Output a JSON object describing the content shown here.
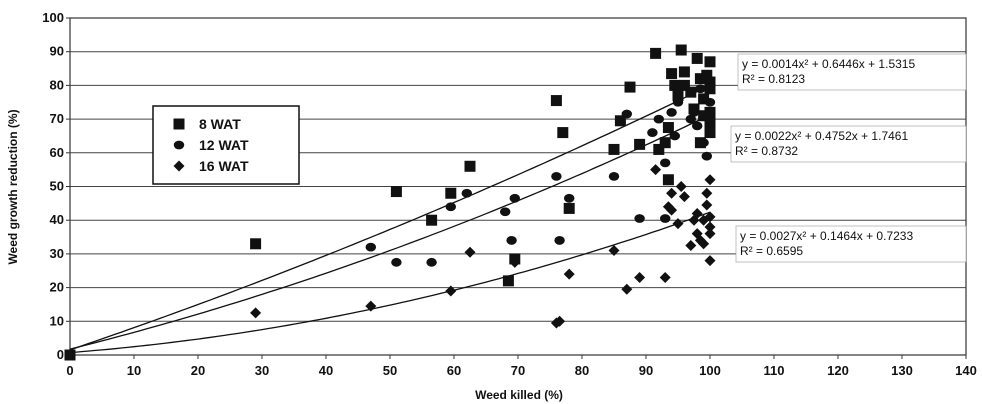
{
  "chart_data": {
    "type": "scatter",
    "xlabel": "Weed killed (%)",
    "ylabel": "Weed growth reduction (%)",
    "xlim": [
      0,
      140
    ],
    "ylim": [
      0,
      100
    ],
    "x_ticks": [
      "0",
      "10",
      "20",
      "30",
      "40",
      "50",
      "60",
      "70",
      "80",
      "90",
      "100",
      "110",
      "120",
      "130",
      "140"
    ],
    "y_ticks": [
      "0",
      "10",
      "20",
      "30",
      "40",
      "50",
      "60",
      "70",
      "80",
      "90",
      "100"
    ],
    "grid": "horizontal",
    "legend_position": "left",
    "series": [
      {
        "name": "8 WAT",
        "marker": "square",
        "trendline": {
          "equation_text": "y = 0.0014x² + 0.6446x + 1.5315",
          "r2_text": "R² = 0.8123",
          "coefficients": [
            0.0014,
            0.6446,
            1.5315
          ],
          "x_range": [
            0,
            100
          ]
        },
        "points": [
          [
            0,
            0
          ],
          [
            29,
            33
          ],
          [
            51,
            48.5
          ],
          [
            56.5,
            40
          ],
          [
            59.5,
            48
          ],
          [
            62.5,
            56
          ],
          [
            68.5,
            22
          ],
          [
            69.5,
            28.5
          ],
          [
            76,
            75.5
          ],
          [
            77,
            66
          ],
          [
            78,
            43.5
          ],
          [
            85,
            61
          ],
          [
            86,
            69.5
          ],
          [
            87.5,
            79.5
          ],
          [
            89,
            62.5
          ],
          [
            91.5,
            89.5
          ],
          [
            92,
            61
          ],
          [
            93,
            63
          ],
          [
            93.5,
            52
          ],
          [
            93.5,
            67.5
          ],
          [
            94,
            83.5
          ],
          [
            94.5,
            80
          ],
          [
            95,
            77
          ],
          [
            95.5,
            90.5
          ],
          [
            96,
            84
          ],
          [
            96,
            80
          ],
          [
            97,
            78
          ],
          [
            97.5,
            73
          ],
          [
            98,
            88
          ],
          [
            98.5,
            82
          ],
          [
            98.5,
            63
          ],
          [
            99,
            76
          ],
          [
            99,
            71
          ],
          [
            99.5,
            83
          ],
          [
            100,
            87
          ],
          [
            100,
            81
          ],
          [
            100,
            79
          ],
          [
            100,
            72
          ],
          [
            100,
            69
          ],
          [
            100,
            66
          ]
        ]
      },
      {
        "name": "12 WAT",
        "marker": "circle",
        "trendline": {
          "equation_text": "y = 0.0022x² + 0.4752x + 1.7461",
          "r2_text": "R² = 0.8732",
          "coefficients": [
            0.0022,
            0.4752,
            1.7461
          ],
          "x_range": [
            0,
            100
          ]
        },
        "points": [
          [
            0,
            0
          ],
          [
            47,
            32
          ],
          [
            51,
            27.5
          ],
          [
            56.5,
            27.5
          ],
          [
            59.5,
            44
          ],
          [
            62,
            48
          ],
          [
            68,
            42.5
          ],
          [
            69,
            34
          ],
          [
            69.5,
            46.5
          ],
          [
            76,
            53
          ],
          [
            76.5,
            34
          ],
          [
            78,
            46.5
          ],
          [
            85,
            53
          ],
          [
            87,
            71.5
          ],
          [
            89,
            40.5
          ],
          [
            91,
            66
          ],
          [
            92,
            70
          ],
          [
            93,
            57
          ],
          [
            93,
            40.5
          ],
          [
            94,
            72
          ],
          [
            94.5,
            65
          ],
          [
            95,
            75
          ],
          [
            96,
            80
          ],
          [
            97,
            70
          ],
          [
            97.5,
            72
          ],
          [
            98,
            68
          ],
          [
            98.5,
            79
          ],
          [
            99,
            63
          ],
          [
            99.5,
            59
          ],
          [
            100,
            75
          ],
          [
            100,
            70
          ]
        ]
      },
      {
        "name": "16 WAT",
        "marker": "diamond",
        "trendline": {
          "equation_text": "y = 0.0027x² + 0.1464x + 0.7233",
          "r2_text": "R² = 0.6595",
          "coefficients": [
            0.0027,
            0.1464,
            0.7233
          ],
          "x_range": [
            0,
            100
          ]
        },
        "points": [
          [
            0,
            0
          ],
          [
            29,
            12.5
          ],
          [
            47,
            14.5
          ],
          [
            59.5,
            19
          ],
          [
            62.5,
            30.5
          ],
          [
            69.5,
            27.5
          ],
          [
            76,
            9.5
          ],
          [
            76.5,
            10
          ],
          [
            78,
            24
          ],
          [
            85,
            31
          ],
          [
            87,
            19.5
          ],
          [
            89,
            23
          ],
          [
            91.5,
            55
          ],
          [
            93,
            23
          ],
          [
            93.5,
            44
          ],
          [
            94,
            48
          ],
          [
            94,
            43
          ],
          [
            95,
            39
          ],
          [
            95.5,
            50
          ],
          [
            96,
            47
          ],
          [
            97,
            32.5
          ],
          [
            97.5,
            40
          ],
          [
            98,
            42
          ],
          [
            98,
            36
          ],
          [
            98.5,
            34
          ],
          [
            99,
            40
          ],
          [
            99,
            33
          ],
          [
            99.5,
            44.5
          ],
          [
            99.5,
            48
          ],
          [
            100,
            52
          ],
          [
            100,
            38
          ],
          [
            100,
            41
          ],
          [
            100,
            36
          ],
          [
            100,
            28
          ]
        ]
      }
    ]
  }
}
